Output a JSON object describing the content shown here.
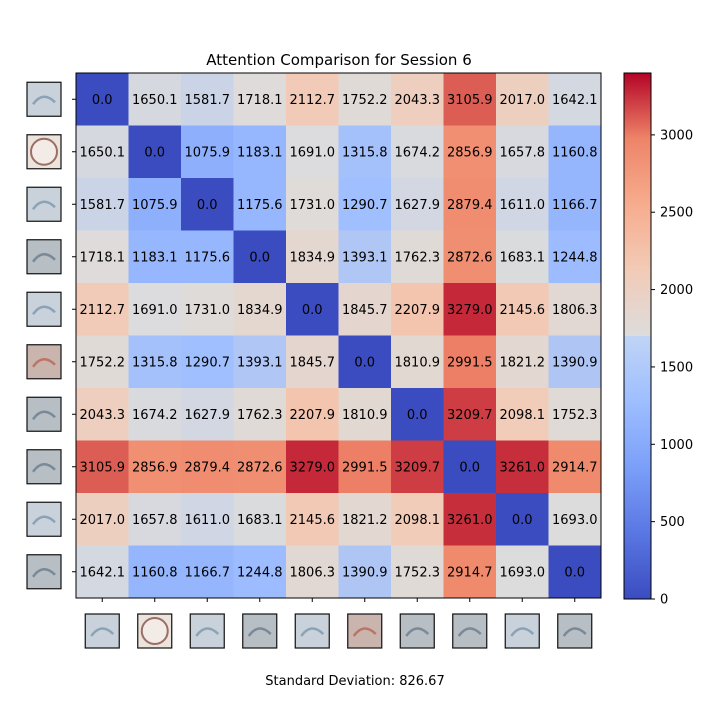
{
  "chart_data": {
    "type": "heatmap",
    "title": "Attention Comparison for Session 6",
    "xlabel": "",
    "ylabel": "",
    "colormap": "coolwarm",
    "vmin": 0,
    "vmax": 3400,
    "colorbar_ticks": [
      0,
      500,
      1000,
      1500,
      2000,
      2500,
      3000
    ],
    "row_thumbnails": [
      "bluish-grey-sample",
      "beige-circular-sample",
      "bluish-grey-sample",
      "grey-sample",
      "bluish-grey-sample",
      "reddish-sample",
      "grey-sample",
      "grey-sample",
      "bluish-grey-sample",
      "grey-sample"
    ],
    "matrix": [
      [
        0.0,
        1650.1,
        1581.7,
        1718.1,
        2112.7,
        1752.2,
        2043.3,
        3105.9,
        2017.0,
        1642.1
      ],
      [
        1650.1,
        0.0,
        1075.9,
        1183.1,
        1691.0,
        1315.8,
        1674.2,
        2856.9,
        1657.8,
        1160.8
      ],
      [
        1581.7,
        1075.9,
        0.0,
        1175.6,
        1731.0,
        1290.7,
        1627.9,
        2879.4,
        1611.0,
        1166.7
      ],
      [
        1718.1,
        1183.1,
        1175.6,
        0.0,
        1834.9,
        1393.1,
        1762.3,
        2872.6,
        1683.1,
        1244.8
      ],
      [
        2112.7,
        1691.0,
        1731.0,
        1834.9,
        0.0,
        1845.7,
        2207.9,
        3279.0,
        2145.6,
        1806.3
      ],
      [
        1752.2,
        1315.8,
        1290.7,
        1393.1,
        1845.7,
        0.0,
        1810.9,
        2991.5,
        1821.2,
        1390.9
      ],
      [
        2043.3,
        1674.2,
        1627.9,
        1762.3,
        2207.9,
        1810.9,
        0.0,
        3209.7,
        2098.1,
        1752.3
      ],
      [
        3105.9,
        2856.9,
        2879.4,
        2872.6,
        3279.0,
        2991.5,
        3209.7,
        0.0,
        3261.0,
        2914.7
      ],
      [
        2017.0,
        1657.8,
        1611.0,
        1683.1,
        2145.6,
        1821.2,
        2098.1,
        3261.0,
        0.0,
        1693.0
      ],
      [
        1642.1,
        1160.8,
        1166.7,
        1244.8,
        1806.3,
        1390.9,
        1752.3,
        2914.7,
        1693.0,
        0.0
      ]
    ],
    "footer": "Standard Deviation: 826.67"
  }
}
